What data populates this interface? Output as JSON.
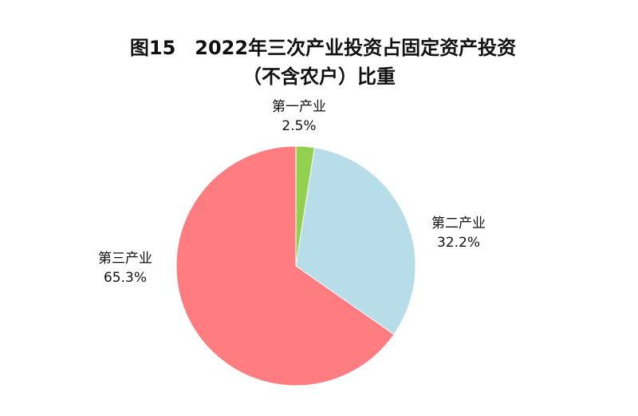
{
  "chart_data": {
    "type": "pie",
    "title": "图15　2022年三次产业投资占固定资产投资",
    "subtitle": "（不含农户）比重",
    "categories": [
      "第一产业",
      "第二产业",
      "第三产业"
    ],
    "values": [
      2.5,
      32.2,
      65.3
    ],
    "data_labels": [
      "2.5%",
      "32.2%",
      "65.3%"
    ],
    "colors": [
      "#92d050",
      "#b7dde8",
      "#ff7c80"
    ],
    "start_angle": "top",
    "direction": "clockwise",
    "legend": "none"
  }
}
